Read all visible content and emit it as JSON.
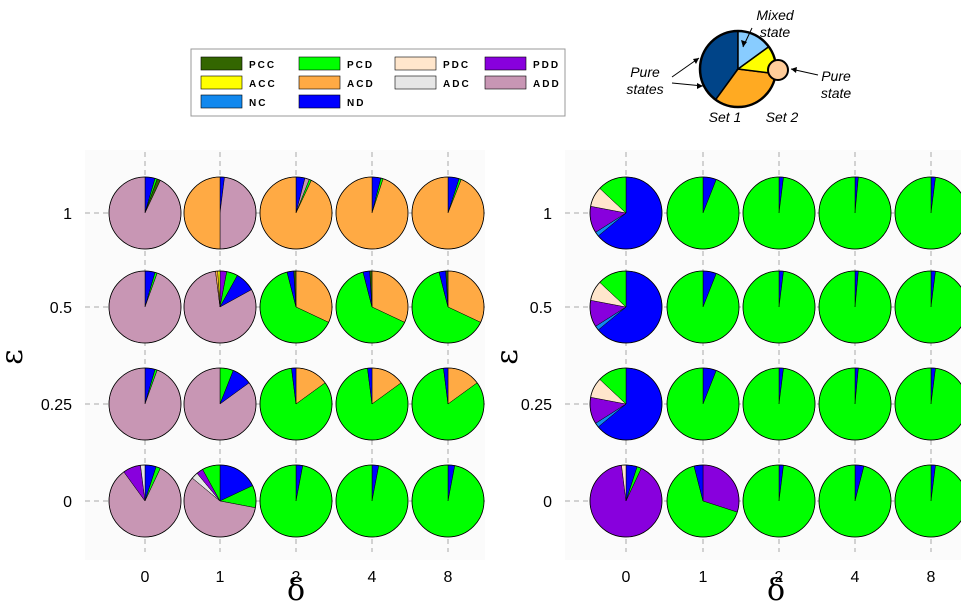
{
  "legend": {
    "items": [
      {
        "label": "PCC",
        "color": "#336600"
      },
      {
        "label": "PCD",
        "color": "#00ff00"
      },
      {
        "label": "PDC",
        "color": "#ffe6cc"
      },
      {
        "label": "PDD",
        "color": "#8800dd"
      },
      {
        "label": "ACC",
        "color": "#ffff00"
      },
      {
        "label": "ACD",
        "color": "#ffaa44"
      },
      {
        "label": "ADC",
        "color": "#e6e6e6"
      },
      {
        "label": "ADD",
        "color": "#c896b4"
      },
      {
        "label": "NC",
        "color": "#1188ee"
      },
      {
        "label": "ND",
        "color": "#0000ff"
      }
    ]
  },
  "schematic": {
    "mixed_label_1": "Mixed",
    "mixed_label_2": "state",
    "pure_states_label_1": "Pure",
    "pure_states_label_2": "states",
    "pure_state_label_1": "Pure",
    "pure_state_label_2": "state",
    "set1_label": "Set 1",
    "set2_label": "Set 2",
    "set1_slices": [
      {
        "category": "PCC",
        "color": "#004488",
        "fraction": 0.4
      },
      {
        "category": "ACD",
        "color": "#ffaa22",
        "fraction": 0.33
      },
      {
        "category": "mixed-yellow",
        "color": "#ffff00",
        "fraction": 0.12
      },
      {
        "category": "mixed-blue",
        "color": "#88ccff",
        "fraction": 0.15
      }
    ],
    "set2_color": "#ffcc99"
  },
  "chart_data": [
    {
      "type": "pie-grid",
      "xlabel": "δ",
      "ylabel": "ε",
      "x_ticks": [
        "0",
        "1",
        "2",
        "4",
        "8"
      ],
      "y_ticks": [
        "1",
        "0.5",
        "0.25",
        "0"
      ],
      "categories": [
        "PCC",
        "ACC",
        "NC",
        "PCD",
        "ACD",
        "ND",
        "PDC",
        "ADC",
        "PDD",
        "ADD"
      ],
      "pies": [
        {
          "eps": "1",
          "delta": "0",
          "slices": [
            [
              "ND",
              0.045
            ],
            [
              "PCD",
              0.01
            ],
            [
              "PCC",
              0.015
            ],
            [
              "ADD",
              0.93
            ]
          ]
        },
        {
          "eps": "1",
          "delta": "1",
          "slices": [
            [
              "ND",
              0.02
            ],
            [
              "ADD",
              0.48
            ],
            [
              "ACD",
              0.5
            ]
          ]
        },
        {
          "eps": "1",
          "delta": "2",
          "slices": [
            [
              "ND",
              0.04
            ],
            [
              "ADD",
              0.02
            ],
            [
              "PCD",
              0.01
            ],
            [
              "ACD",
              0.93
            ]
          ]
        },
        {
          "eps": "1",
          "delta": "4",
          "slices": [
            [
              "ND",
              0.04
            ],
            [
              "PCD",
              0.01
            ],
            [
              "ACD",
              0.95
            ]
          ]
        },
        {
          "eps": "1",
          "delta": "8",
          "slices": [
            [
              "ND",
              0.05
            ],
            [
              "PCD",
              0.01
            ],
            [
              "ACD",
              0.94
            ]
          ]
        },
        {
          "eps": "0.5",
          "delta": "0",
          "slices": [
            [
              "ND",
              0.045
            ],
            [
              "PCD",
              0.01
            ],
            [
              "ADD",
              0.945
            ]
          ]
        },
        {
          "eps": "0.5",
          "delta": "1",
          "slices": [
            [
              "PDD",
              0.03
            ],
            [
              "PCD",
              0.05
            ],
            [
              "ND",
              0.09
            ],
            [
              "ADD",
              0.81
            ],
            [
              "ACD",
              0.01
            ],
            [
              "ACC",
              0.01
            ]
          ]
        },
        {
          "eps": "0.5",
          "delta": "2",
          "slices": [
            [
              "ACD",
              0.32
            ],
            [
              "PCD",
              0.64
            ],
            [
              "ND",
              0.03
            ],
            [
              "PCC",
              0.01
            ]
          ]
        },
        {
          "eps": "0.5",
          "delta": "4",
          "slices": [
            [
              "ACD",
              0.32
            ],
            [
              "PCD",
              0.64
            ],
            [
              "ND",
              0.03
            ],
            [
              "PCC",
              0.01
            ]
          ]
        },
        {
          "eps": "0.5",
          "delta": "8",
          "slices": [
            [
              "ACD",
              0.32
            ],
            [
              "PCD",
              0.64
            ],
            [
              "ND",
              0.03
            ],
            [
              "PCC",
              0.01
            ]
          ]
        },
        {
          "eps": "0.25",
          "delta": "0",
          "slices": [
            [
              "ND",
              0.045
            ],
            [
              "PCD",
              0.01
            ],
            [
              "ADD",
              0.945
            ]
          ]
        },
        {
          "eps": "0.25",
          "delta": "1",
          "slices": [
            [
              "PCD",
              0.06
            ],
            [
              "ND",
              0.09
            ],
            [
              "ADD",
              0.85
            ]
          ]
        },
        {
          "eps": "0.25",
          "delta": "2",
          "slices": [
            [
              "ACD",
              0.15
            ],
            [
              "PCD",
              0.83
            ],
            [
              "ND",
              0.02
            ]
          ]
        },
        {
          "eps": "0.25",
          "delta": "4",
          "slices": [
            [
              "ACD",
              0.15
            ],
            [
              "PCD",
              0.83
            ],
            [
              "ND",
              0.02
            ]
          ]
        },
        {
          "eps": "0.25",
          "delta": "8",
          "slices": [
            [
              "ACD",
              0.15
            ],
            [
              "PCD",
              0.83
            ],
            [
              "ND",
              0.02
            ]
          ]
        },
        {
          "eps": "0",
          "delta": "0",
          "slices": [
            [
              "ND",
              0.05
            ],
            [
              "PCD",
              0.02
            ],
            [
              "ADD",
              0.83
            ],
            [
              "PDD",
              0.08
            ],
            [
              "ADC",
              0.02
            ]
          ]
        },
        {
          "eps": "0",
          "delta": "1",
          "slices": [
            [
              "ND",
              0.18
            ],
            [
              "PCD",
              0.1
            ],
            [
              "ADD",
              0.58
            ],
            [
              "ADC",
              0.03
            ],
            [
              "PDD",
              0.03
            ],
            [
              "PCD",
              0.08
            ]
          ]
        },
        {
          "eps": "0",
          "delta": "2",
          "slices": [
            [
              "ND",
              0.03
            ],
            [
              "PCD",
              0.97
            ]
          ]
        },
        {
          "eps": "0",
          "delta": "4",
          "slices": [
            [
              "ND",
              0.03
            ],
            [
              "PCD",
              0.97
            ]
          ]
        },
        {
          "eps": "0",
          "delta": "8",
          "slices": [
            [
              "ND",
              0.03
            ],
            [
              "PCD",
              0.97
            ]
          ]
        }
      ]
    },
    {
      "type": "pie-grid",
      "xlabel": "δ",
      "ylabel": "ε",
      "x_ticks": [
        "0",
        "1",
        "2",
        "4",
        "8"
      ],
      "y_ticks": [
        "1",
        "0.5",
        "0.25",
        "0"
      ],
      "categories": [
        "PCC",
        "ACC",
        "NC",
        "PCD",
        "ACD",
        "ND",
        "PDC",
        "ADC",
        "PDD",
        "ADD"
      ],
      "pies": [
        {
          "eps": "1",
          "delta": "0",
          "slices": [
            [
              "ND",
              0.64
            ],
            [
              "NC",
              0.02
            ],
            [
              "PDD",
              0.12
            ],
            [
              "PDC",
              0.09
            ],
            [
              "PCD",
              0.13
            ]
          ]
        },
        {
          "eps": "1",
          "delta": "1",
          "slices": [
            [
              "ND",
              0.06
            ],
            [
              "PCD",
              0.94
            ]
          ]
        },
        {
          "eps": "1",
          "delta": "2",
          "slices": [
            [
              "ND",
              0.02
            ],
            [
              "PCD",
              0.98
            ]
          ]
        },
        {
          "eps": "1",
          "delta": "4",
          "slices": [
            [
              "ND",
              0.015
            ],
            [
              "PCD",
              0.985
            ]
          ]
        },
        {
          "eps": "1",
          "delta": "8",
          "slices": [
            [
              "ND",
              0.02
            ],
            [
              "PCD",
              0.98
            ]
          ]
        },
        {
          "eps": "0.5",
          "delta": "0",
          "slices": [
            [
              "ND",
              0.64
            ],
            [
              "NC",
              0.02
            ],
            [
              "PDD",
              0.12
            ],
            [
              "PDC",
              0.09
            ],
            [
              "PCD",
              0.13
            ]
          ]
        },
        {
          "eps": "0.5",
          "delta": "1",
          "slices": [
            [
              "ND",
              0.06
            ],
            [
              "PCD",
              0.94
            ]
          ]
        },
        {
          "eps": "0.5",
          "delta": "2",
          "slices": [
            [
              "ND",
              0.02
            ],
            [
              "PCD",
              0.98
            ]
          ]
        },
        {
          "eps": "0.5",
          "delta": "4",
          "slices": [
            [
              "ND",
              0.015
            ],
            [
              "PCD",
              0.985
            ]
          ]
        },
        {
          "eps": "0.5",
          "delta": "8",
          "slices": [
            [
              "ND",
              0.02
            ],
            [
              "PCD",
              0.98
            ]
          ]
        },
        {
          "eps": "0.25",
          "delta": "0",
          "slices": [
            [
              "ND",
              0.64
            ],
            [
              "NC",
              0.02
            ],
            [
              "PDD",
              0.12
            ],
            [
              "PDC",
              0.09
            ],
            [
              "PCD",
              0.13
            ]
          ]
        },
        {
          "eps": "0.25",
          "delta": "1",
          "slices": [
            [
              "ND",
              0.06
            ],
            [
              "PCD",
              0.94
            ]
          ]
        },
        {
          "eps": "0.25",
          "delta": "2",
          "slices": [
            [
              "ND",
              0.02
            ],
            [
              "PCD",
              0.98
            ]
          ]
        },
        {
          "eps": "0.25",
          "delta": "4",
          "slices": [
            [
              "ND",
              0.015
            ],
            [
              "PCD",
              0.985
            ]
          ]
        },
        {
          "eps": "0.25",
          "delta": "8",
          "slices": [
            [
              "ND",
              0.02
            ],
            [
              "PCD",
              0.98
            ]
          ]
        },
        {
          "eps": "0",
          "delta": "0",
          "slices": [
            [
              "ND",
              0.05
            ],
            [
              "PCD",
              0.02
            ],
            [
              "PDD",
              0.91
            ],
            [
              "PDC",
              0.02
            ]
          ]
        },
        {
          "eps": "0",
          "delta": "1",
          "slices": [
            [
              "PDD",
              0.3
            ],
            [
              "PCD",
              0.66
            ],
            [
              "ND",
              0.04
            ]
          ]
        },
        {
          "eps": "0",
          "delta": "2",
          "slices": [
            [
              "ND",
              0.02
            ],
            [
              "PCD",
              0.98
            ]
          ]
        },
        {
          "eps": "0",
          "delta": "4",
          "slices": [
            [
              "ND",
              0.04
            ],
            [
              "PCD",
              0.96
            ]
          ]
        },
        {
          "eps": "0",
          "delta": "8",
          "slices": [
            [
              "ND",
              0.02
            ],
            [
              "PCD",
              0.98
            ]
          ]
        }
      ]
    }
  ]
}
